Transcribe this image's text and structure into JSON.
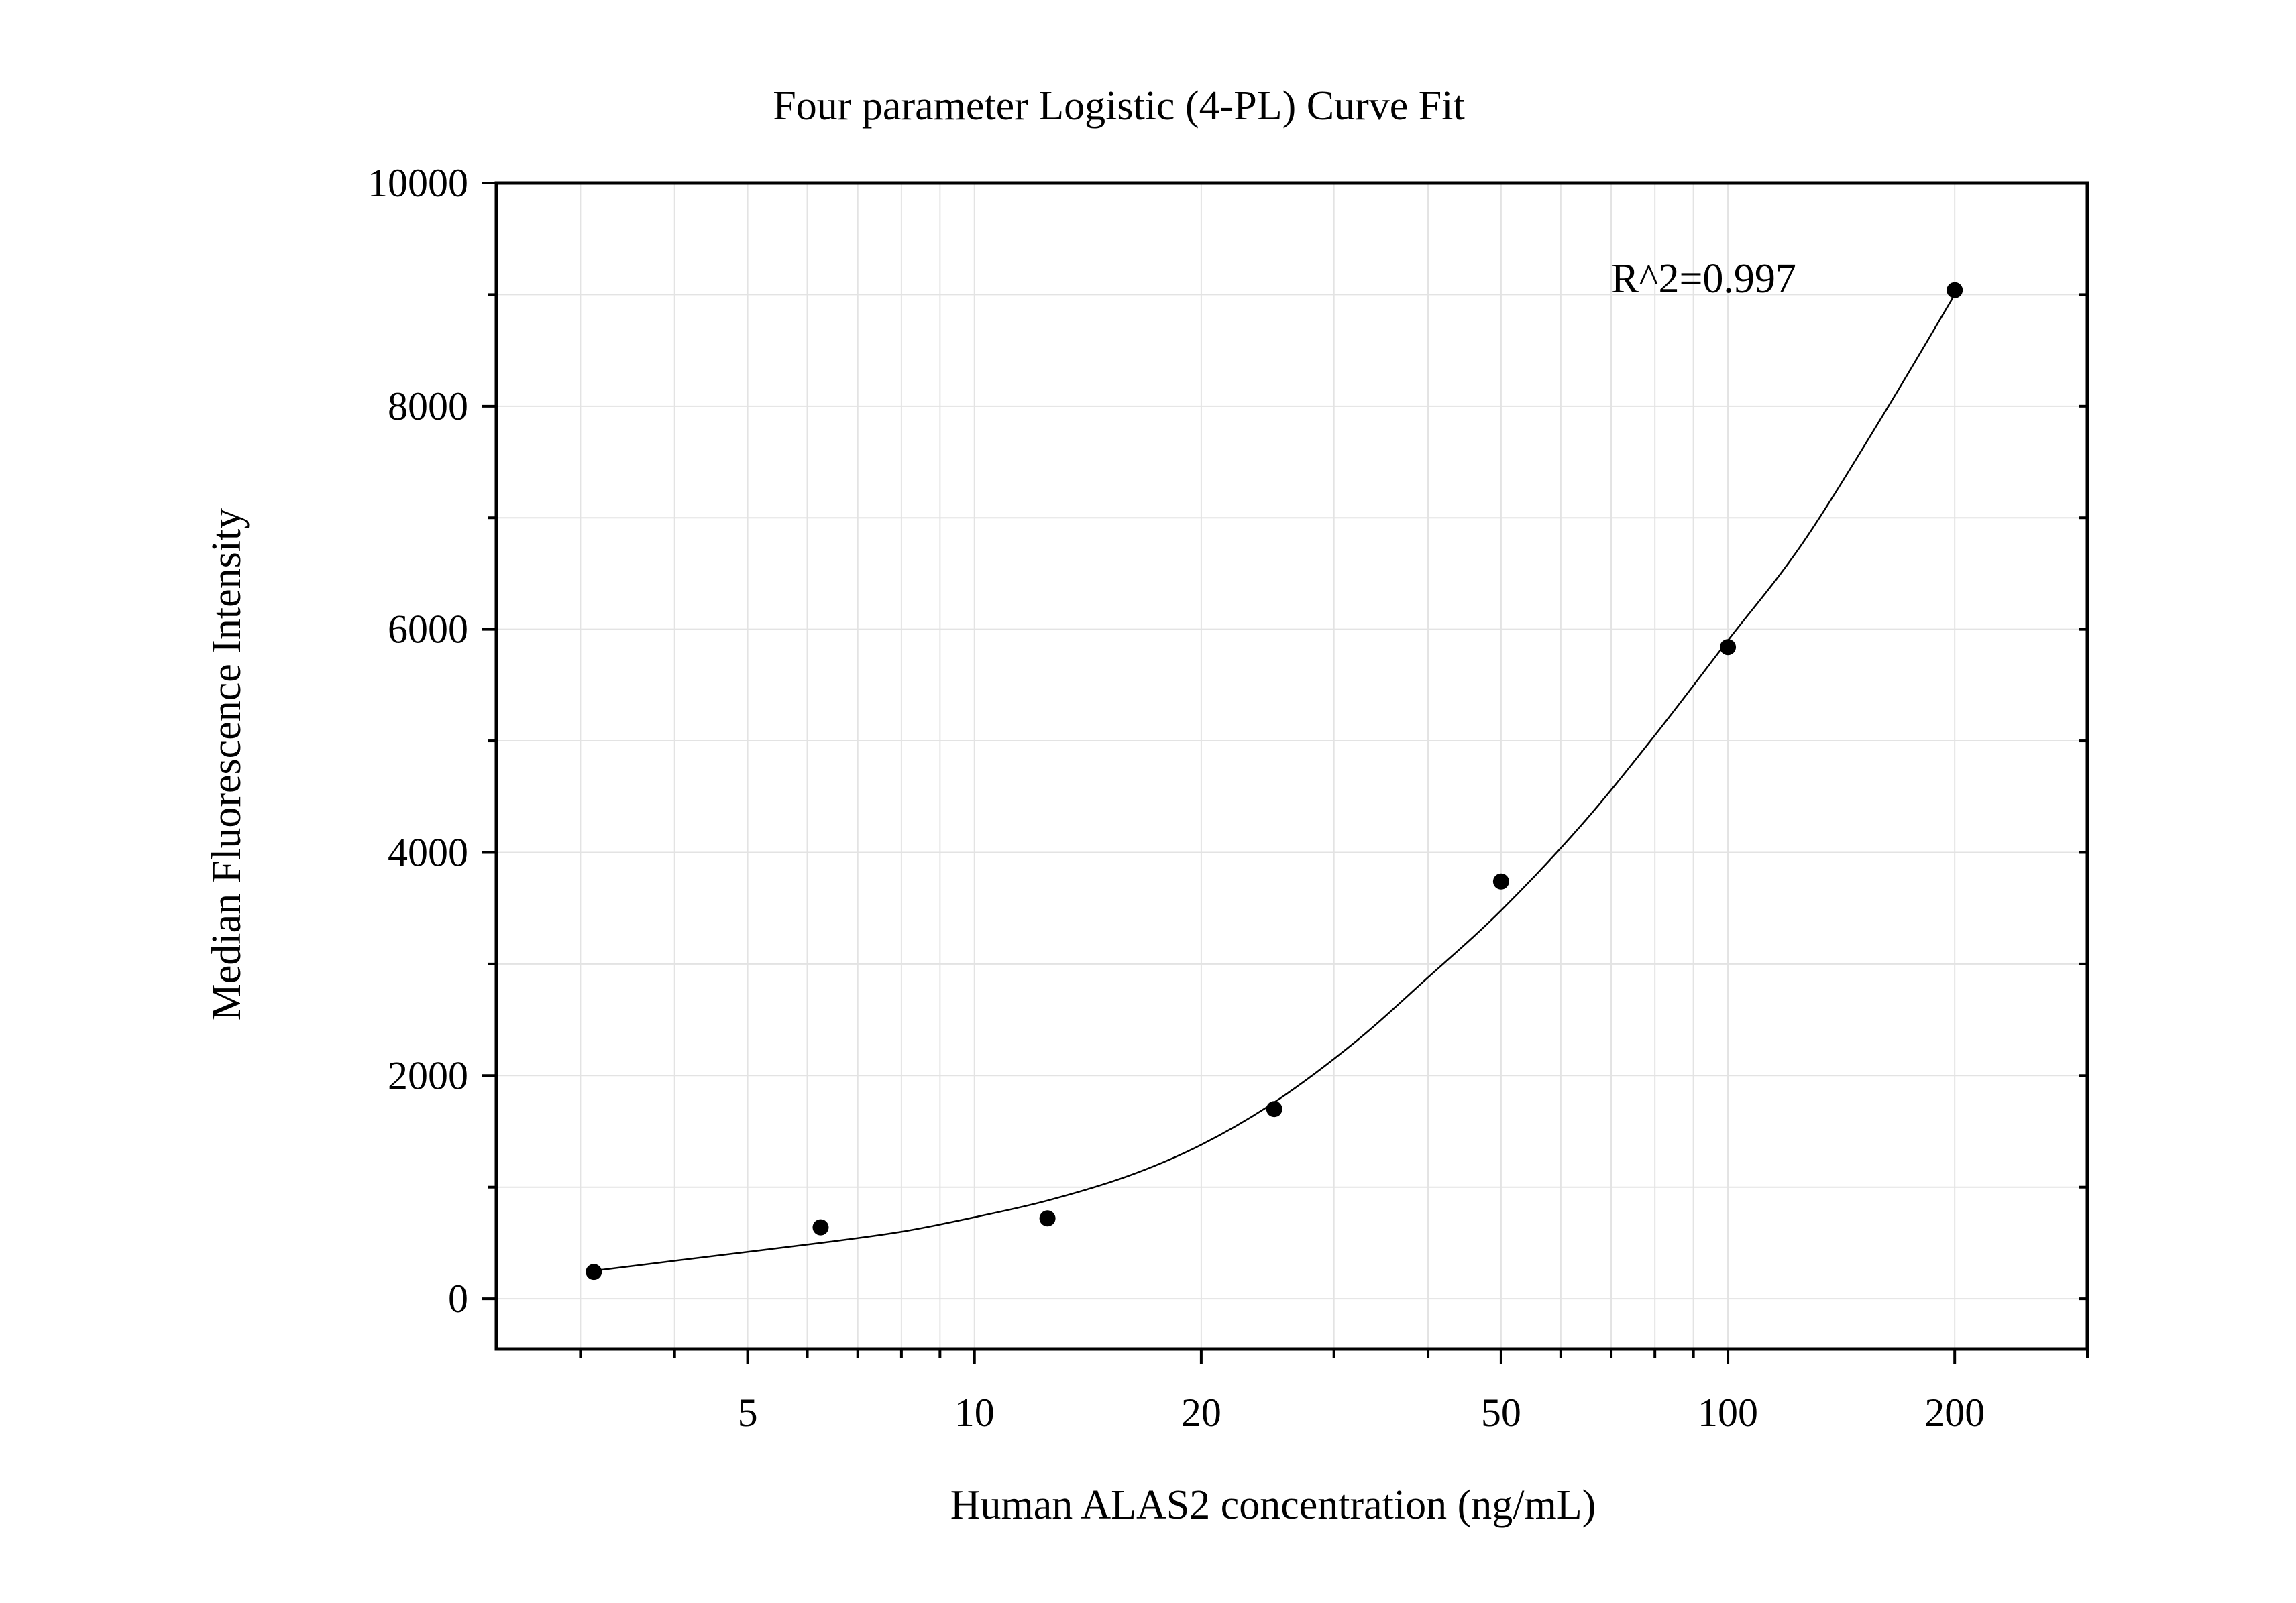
{
  "chart_data": {
    "type": "scatter",
    "title": "Four parameter Logistic (4-PL) Curve Fit",
    "xlabel": "Human ALAS2 concentration (ng/mL)",
    "ylabel": "Median Fluorescence Intensity",
    "x_scale": "log",
    "xlim": [
      2.32,
      300
    ],
    "ylim": [
      -450,
      10000
    ],
    "x_ticks": [
      5,
      10,
      20,
      50,
      100,
      200
    ],
    "x_tick_labels": [
      "5",
      "10",
      "20",
      "50",
      "100",
      "200"
    ],
    "y_ticks": [
      0,
      2000,
      4000,
      6000,
      8000,
      10000
    ],
    "y_tick_labels": [
      "0",
      "2000",
      "4000",
      "6000",
      "8000",
      "10000"
    ],
    "grid": true,
    "annotation": "R^2=0.997",
    "points": {
      "x": [
        3.125,
        6.25,
        12.5,
        25,
        50,
        100,
        200
      ],
      "y": [
        240,
        640,
        720,
        1700,
        3740,
        5840,
        9040
      ]
    },
    "fit_curve": {
      "x": [
        3.125,
        4,
        5,
        6.25,
        8,
        10,
        12.5,
        16,
        20,
        25,
        32,
        40,
        50,
        64,
        80,
        100,
        125,
        160,
        200
      ],
      "y": [
        250,
        340,
        420,
        500,
        600,
        730,
        880,
        1100,
        1380,
        1760,
        2300,
        2880,
        3480,
        4250,
        5050,
        5900,
        6750,
        7900,
        9000
      ]
    }
  }
}
